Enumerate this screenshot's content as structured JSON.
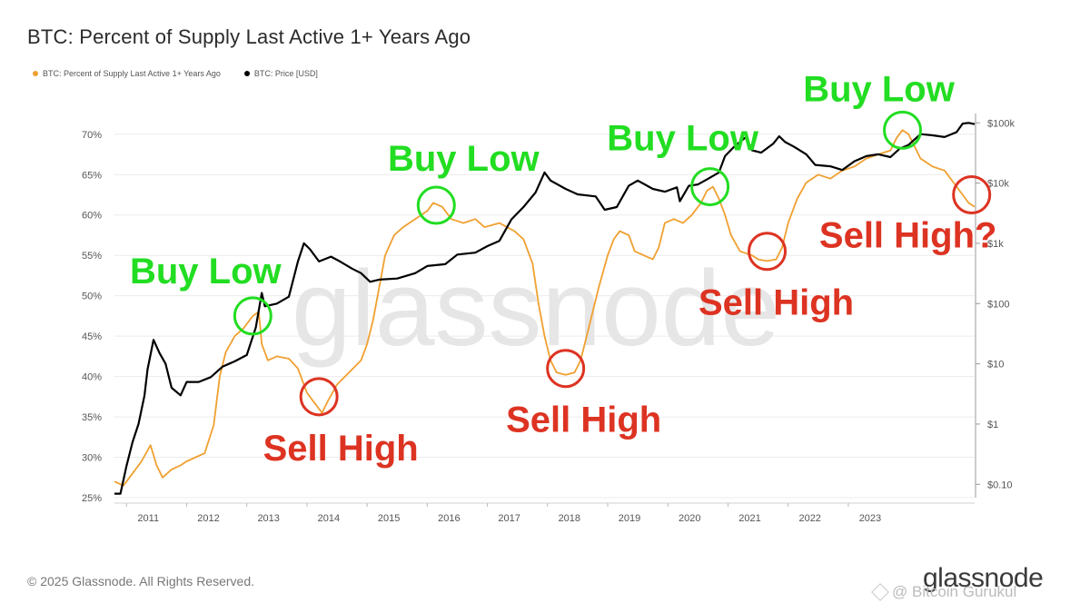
{
  "title": "BTC: Percent of Supply Last Active 1+ Years Ago",
  "legend": [
    {
      "label": "BTC: Percent of Supply Last Active 1+ Years Ago",
      "color": "#f0a030"
    },
    {
      "label": "BTC: Price [USD]",
      "color": "#000000"
    }
  ],
  "watermark": "glassnode",
  "footer": "© 2025 Glassnode. All Rights Reserved.",
  "brand": "glassnode",
  "user_tag": "@ Bitcoin Gurukul",
  "colors": {
    "supply": "#f0a030",
    "price": "#000000",
    "buy": "#22dd22",
    "sell": "#dd3322",
    "grid": "#ececec"
  },
  "chart_data": {
    "type": "line",
    "x_ticks": [
      "2011",
      "2012",
      "2013",
      "2014",
      "2015",
      "2016",
      "2017",
      "2018",
      "2019",
      "2020",
      "2021",
      "2022",
      "2023"
    ],
    "xlim": [
      2010.8,
      2025.1
    ],
    "left_axis": {
      "ticks": [
        "25%",
        "30%",
        "35%",
        "40%",
        "45%",
        "50%",
        "55%",
        "60%",
        "65%",
        "70%"
      ],
      "ylim": [
        25,
        72
      ]
    },
    "right_axis": {
      "ticks": [
        "$0.10",
        "$1",
        "$10",
        "$100",
        "$1k",
        "$10k",
        "$100k"
      ],
      "scale": "log",
      "ylim": [
        0.06,
        120000
      ]
    },
    "series": [
      {
        "name": "BTC: Percent of Supply Last Active 1+ Years Ago",
        "axis": "left",
        "points": [
          [
            2010.8,
            27
          ],
          [
            2010.95,
            26.5
          ],
          [
            2011.1,
            28
          ],
          [
            2011.25,
            29.5
          ],
          [
            2011.4,
            31.5
          ],
          [
            2011.5,
            29
          ],
          [
            2011.6,
            27.5
          ],
          [
            2011.75,
            28.5
          ],
          [
            2011.9,
            29
          ],
          [
            2012.0,
            29.5
          ],
          [
            2012.15,
            30
          ],
          [
            2012.3,
            30.5
          ],
          [
            2012.45,
            34
          ],
          [
            2012.55,
            40
          ],
          [
            2012.65,
            43
          ],
          [
            2012.8,
            45
          ],
          [
            2012.95,
            46
          ],
          [
            2013.1,
            47.5
          ],
          [
            2013.2,
            48
          ],
          [
            2013.25,
            44
          ],
          [
            2013.35,
            42
          ],
          [
            2013.5,
            42.5
          ],
          [
            2013.7,
            42.2
          ],
          [
            2013.85,
            41
          ],
          [
            2014.0,
            38
          ],
          [
            2014.1,
            37
          ],
          [
            2014.2,
            36
          ],
          [
            2014.25,
            35.5
          ],
          [
            2014.35,
            37
          ],
          [
            2014.5,
            39
          ],
          [
            2014.7,
            40.5
          ],
          [
            2014.9,
            42
          ],
          [
            2015.0,
            44
          ],
          [
            2015.1,
            47
          ],
          [
            2015.2,
            51
          ],
          [
            2015.3,
            55
          ],
          [
            2015.45,
            57.5
          ],
          [
            2015.6,
            58.5
          ],
          [
            2015.8,
            59.5
          ],
          [
            2016.0,
            60.5
          ],
          [
            2016.1,
            61.5
          ],
          [
            2016.25,
            61
          ],
          [
            2016.4,
            59.5
          ],
          [
            2016.6,
            59
          ],
          [
            2016.8,
            59.5
          ],
          [
            2016.95,
            58.5
          ],
          [
            2017.2,
            59
          ],
          [
            2017.45,
            58
          ],
          [
            2017.6,
            57
          ],
          [
            2017.75,
            54
          ],
          [
            2017.85,
            49
          ],
          [
            2017.95,
            45
          ],
          [
            2018.05,
            42
          ],
          [
            2018.15,
            40.5
          ],
          [
            2018.3,
            40.2
          ],
          [
            2018.45,
            40.5
          ],
          [
            2018.55,
            42
          ],
          [
            2018.65,
            45
          ],
          [
            2018.75,
            48
          ],
          [
            2018.85,
            51
          ],
          [
            2019.0,
            55
          ],
          [
            2019.1,
            57
          ],
          [
            2019.2,
            58
          ],
          [
            2019.35,
            57.5
          ],
          [
            2019.45,
            55.5
          ],
          [
            2019.6,
            55
          ],
          [
            2019.75,
            54.5
          ],
          [
            2019.85,
            56
          ],
          [
            2019.95,
            59
          ],
          [
            2020.1,
            59.5
          ],
          [
            2020.25,
            59
          ],
          [
            2020.4,
            60
          ],
          [
            2020.55,
            61.5
          ],
          [
            2020.65,
            63
          ],
          [
            2020.75,
            63.5
          ],
          [
            2020.85,
            62
          ],
          [
            2020.95,
            60
          ],
          [
            2021.05,
            57.5
          ],
          [
            2021.2,
            55.5
          ],
          [
            2021.4,
            55
          ],
          [
            2021.5,
            54.5
          ],
          [
            2021.65,
            54.3
          ],
          [
            2021.8,
            54.5
          ],
          [
            2021.9,
            56
          ],
          [
            2022.0,
            59
          ],
          [
            2022.15,
            62
          ],
          [
            2022.3,
            64
          ],
          [
            2022.5,
            65
          ],
          [
            2022.7,
            64.5
          ],
          [
            2022.9,
            65.5
          ],
          [
            2023.1,
            66
          ],
          [
            2023.3,
            67
          ],
          [
            2023.5,
            67.5
          ],
          [
            2023.7,
            68
          ],
          [
            2023.8,
            69.5
          ],
          [
            2023.9,
            70.5
          ],
          [
            2024.0,
            70
          ],
          [
            2024.1,
            68.5
          ],
          [
            2024.2,
            67
          ],
          [
            2024.4,
            66
          ],
          [
            2024.6,
            65.5
          ],
          [
            2024.75,
            64
          ],
          [
            2024.9,
            62.5
          ],
          [
            2025.0,
            61.5
          ],
          [
            2025.1,
            61
          ]
        ]
      },
      {
        "name": "BTC: Price [USD]",
        "axis": "right",
        "points": [
          [
            2010.8,
            0.07
          ],
          [
            2010.9,
            0.07
          ],
          [
            2011.0,
            0.2
          ],
          [
            2011.1,
            0.5
          ],
          [
            2011.2,
            1
          ],
          [
            2011.3,
            3
          ],
          [
            2011.35,
            8
          ],
          [
            2011.45,
            25
          ],
          [
            2011.55,
            15
          ],
          [
            2011.65,
            10
          ],
          [
            2011.75,
            4
          ],
          [
            2011.9,
            3
          ],
          [
            2012.0,
            5
          ],
          [
            2012.2,
            5
          ],
          [
            2012.4,
            6
          ],
          [
            2012.6,
            9
          ],
          [
            2012.8,
            11
          ],
          [
            2013.0,
            14
          ],
          [
            2013.15,
            40
          ],
          [
            2013.25,
            150
          ],
          [
            2013.3,
            90
          ],
          [
            2013.5,
            100
          ],
          [
            2013.7,
            130
          ],
          [
            2013.85,
            500
          ],
          [
            2013.95,
            1000
          ],
          [
            2014.05,
            800
          ],
          [
            2014.2,
            500
          ],
          [
            2014.4,
            600
          ],
          [
            2014.55,
            500
          ],
          [
            2014.75,
            380
          ],
          [
            2014.9,
            320
          ],
          [
            2015.05,
            230
          ],
          [
            2015.2,
            250
          ],
          [
            2015.5,
            260
          ],
          [
            2015.8,
            320
          ],
          [
            2016.0,
            420
          ],
          [
            2016.3,
            450
          ],
          [
            2016.5,
            650
          ],
          [
            2016.8,
            700
          ],
          [
            2017.0,
            900
          ],
          [
            2017.2,
            1100
          ],
          [
            2017.4,
            2500
          ],
          [
            2017.6,
            4000
          ],
          [
            2017.8,
            7000
          ],
          [
            2017.95,
            15000
          ],
          [
            2018.05,
            11000
          ],
          [
            2018.3,
            8000
          ],
          [
            2018.5,
            6500
          ],
          [
            2018.8,
            6000
          ],
          [
            2018.95,
            3600
          ],
          [
            2019.15,
            4000
          ],
          [
            2019.35,
            9000
          ],
          [
            2019.5,
            11000
          ],
          [
            2019.75,
            8000
          ],
          [
            2019.95,
            7200
          ],
          [
            2020.15,
            8500
          ],
          [
            2020.2,
            5000
          ],
          [
            2020.35,
            9000
          ],
          [
            2020.5,
            9500
          ],
          [
            2020.65,
            11500
          ],
          [
            2020.85,
            15000
          ],
          [
            2020.95,
            28000
          ],
          [
            2021.1,
            40000
          ],
          [
            2021.3,
            58000
          ],
          [
            2021.4,
            35000
          ],
          [
            2021.55,
            32000
          ],
          [
            2021.75,
            45000
          ],
          [
            2021.85,
            60000
          ],
          [
            2021.95,
            48000
          ],
          [
            2022.1,
            40000
          ],
          [
            2022.3,
            30000
          ],
          [
            2022.45,
            20000
          ],
          [
            2022.7,
            19000
          ],
          [
            2022.9,
            16500
          ],
          [
            2023.1,
            23000
          ],
          [
            2023.3,
            28000
          ],
          [
            2023.5,
            30000
          ],
          [
            2023.7,
            27000
          ],
          [
            2023.85,
            37000
          ],
          [
            2024.0,
            43000
          ],
          [
            2024.2,
            65000
          ],
          [
            2024.4,
            62000
          ],
          [
            2024.6,
            58000
          ],
          [
            2024.8,
            70000
          ],
          [
            2024.9,
            97000
          ],
          [
            2025.0,
            100000
          ],
          [
            2025.1,
            95000
          ]
        ]
      }
    ],
    "annotations": [
      {
        "text": "Buy Low",
        "kind": "buy",
        "x": 2013.1,
        "y": 47.5
      },
      {
        "text": "Sell High",
        "kind": "sell",
        "x": 2014.2,
        "y": 37.5
      },
      {
        "text": "Buy Low",
        "kind": "buy",
        "x": 2016.15,
        "y": 61.2
      },
      {
        "text": "Sell High",
        "kind": "sell",
        "x": 2018.3,
        "y": 41
      },
      {
        "text": "Buy Low",
        "kind": "buy",
        "x": 2020.7,
        "y": 63.5
      },
      {
        "text": "Sell High",
        "kind": "sell",
        "x": 2021.65,
        "y": 55.5
      },
      {
        "text": "Buy Low",
        "kind": "buy",
        "x": 2023.9,
        "y": 70.5
      },
      {
        "text": "Sell High?",
        "kind": "sell",
        "x": 2025.05,
        "y": 62.5
      }
    ]
  }
}
